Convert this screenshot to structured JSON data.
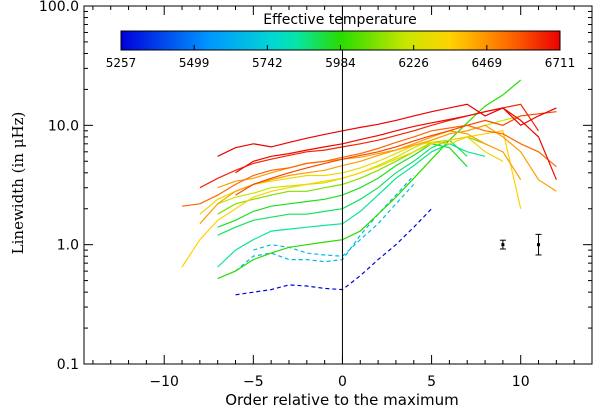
{
  "chart_data": {
    "type": "line",
    "title": "",
    "xlabel": "Order relative to the maximum",
    "ylabel": "Linewidth (in μHz)",
    "y_scale": "log",
    "xlim": [
      -14.5,
      14.0
    ],
    "ylim": [
      0.1,
      100
    ],
    "x_ticks": [
      -10,
      -5,
      0,
      5,
      10
    ],
    "x_tick_labels": [
      "−10",
      "−5",
      "0",
      "5",
      "10"
    ],
    "y_ticks": [
      0.1,
      1,
      10,
      100
    ],
    "y_tick_labels": [
      "0.1",
      "1.0",
      "10.0",
      "100.0"
    ],
    "vertical_line_x": 0,
    "colorbar": {
      "title": "Effective temperature",
      "min": 5257,
      "max": 6711,
      "tick_labels": [
        "5257",
        "5499",
        "5742",
        "5984",
        "6226",
        "6469",
        "6711"
      ]
    },
    "error_bars": [
      {
        "x": 9,
        "y": 1.0,
        "low": 0.92,
        "high": 1.09
      },
      {
        "x": 11,
        "y": 1.0,
        "low": 0.82,
        "high": 1.22
      }
    ],
    "series": [
      {
        "teff": 5257,
        "style": "dashed",
        "x": [
          -6,
          -4,
          -3,
          -2,
          -1,
          0,
          1,
          2,
          3,
          4,
          5
        ],
        "y": [
          0.38,
          0.42,
          0.46,
          0.45,
          0.43,
          0.42,
          0.55,
          0.75,
          1.0,
          1.4,
          2.0
        ]
      },
      {
        "teff": 5650,
        "style": "dashed",
        "x": [
          -6,
          -5,
          -4,
          -3,
          -2,
          -1,
          0,
          1,
          2,
          3,
          4
        ],
        "y": [
          0.6,
          0.8,
          0.85,
          0.75,
          0.75,
          0.72,
          0.75,
          1.2,
          1.8,
          2.6,
          3.8
        ]
      },
      {
        "teff": 5680,
        "style": "dashed",
        "x": [
          -5,
          -4,
          -3,
          -2,
          -1,
          0,
          1,
          2,
          3,
          4
        ],
        "y": [
          0.9,
          1.0,
          0.95,
          0.85,
          0.82,
          0.8,
          1.1,
          1.5,
          2.2,
          3.2
        ]
      },
      {
        "teff": 5984,
        "style": "solid",
        "x": [
          -7,
          -6,
          -5,
          -4,
          -3,
          -2,
          -1,
          0,
          1,
          2,
          3,
          4,
          5,
          6,
          7,
          8,
          9,
          10
        ],
        "y": [
          0.52,
          0.6,
          0.75,
          0.85,
          0.95,
          1.0,
          1.05,
          1.1,
          1.3,
          1.8,
          2.5,
          3.6,
          5.2,
          7.5,
          10.5,
          14.5,
          18,
          24
        ]
      },
      {
        "teff": 5850,
        "style": "solid",
        "x": [
          -7,
          -6,
          -5,
          -4,
          -3,
          -2,
          -1,
          0,
          1,
          2,
          3,
          4,
          5,
          6,
          7,
          8
        ],
        "y": [
          0.65,
          0.9,
          1.1,
          1.3,
          1.35,
          1.4,
          1.45,
          1.5,
          1.9,
          2.6,
          3.6,
          4.6,
          6,
          7,
          6,
          5.5
        ]
      },
      {
        "teff": 5900,
        "style": "solid",
        "x": [
          -7,
          -6,
          -5,
          -4,
          -3,
          -2,
          -1,
          0,
          1,
          2,
          3,
          4,
          5,
          6,
          7
        ],
        "y": [
          1.2,
          1.4,
          1.6,
          1.7,
          1.8,
          1.8,
          1.9,
          2.0,
          2.4,
          3.0,
          4.0,
          5.0,
          6.5,
          7.5,
          5.5
        ]
      },
      {
        "teff": 5950,
        "style": "solid",
        "x": [
          -7,
          -6,
          -5,
          -4,
          -3,
          -2,
          -1,
          0,
          1,
          2,
          3,
          4,
          5,
          6,
          7
        ],
        "y": [
          1.4,
          1.6,
          1.9,
          2.1,
          2.2,
          2.3,
          2.4,
          2.6,
          3.0,
          3.6,
          4.6,
          5.6,
          7,
          6.5,
          4.5
        ]
      },
      {
        "teff": 6100,
        "style": "solid",
        "x": [
          -7,
          -6,
          -5,
          -4,
          -3,
          -2,
          -1,
          0,
          1,
          2,
          3,
          4,
          5,
          6,
          7,
          8
        ],
        "y": [
          1.8,
          2.2,
          2.4,
          2.6,
          2.8,
          2.8,
          3.0,
          3.2,
          3.6,
          4.2,
          5.0,
          6.0,
          7.2,
          7.5,
          8,
          7
        ]
      },
      {
        "teff": 6200,
        "style": "solid",
        "x": [
          -7,
          -6,
          -5,
          -4,
          -3,
          -2,
          -1,
          0,
          1,
          2,
          3,
          4,
          5,
          6,
          7,
          8,
          9,
          10
        ],
        "y": [
          2.2,
          2.5,
          2.7,
          3.0,
          3.1,
          3.2,
          3.3,
          3.6,
          4.0,
          4.6,
          5.4,
          6.5,
          7.5,
          8.5,
          9,
          10,
          11,
          12
        ]
      },
      {
        "teff": 6300,
        "style": "solid",
        "x": [
          -8,
          -7,
          -6,
          -5,
          -4,
          -3,
          -2,
          -1,
          0,
          1,
          2,
          3,
          4,
          5,
          6,
          7,
          8,
          9
        ],
        "y": [
          1.8,
          2.4,
          2.8,
          3.2,
          3.4,
          3.6,
          3.8,
          3.8,
          4.0,
          4.4,
          5.0,
          5.8,
          6.8,
          7.2,
          7,
          8,
          6,
          5
        ]
      },
      {
        "teff": 6350,
        "style": "solid",
        "x": [
          -9,
          -8,
          -7,
          -6,
          -5,
          -4,
          -3,
          -2,
          -1,
          0,
          1,
          2,
          3,
          4,
          5,
          6,
          7,
          8,
          9,
          10
        ],
        "y": [
          0.65,
          1.1,
          1.6,
          2.0,
          2.5,
          2.8,
          3.0,
          3.2,
          3.4,
          3.6,
          4.0,
          4.5,
          5.2,
          6,
          7,
          7.5,
          8,
          8.5,
          9,
          2
        ]
      },
      {
        "teff": 6450,
        "style": "solid",
        "x": [
          -8,
          -7,
          -6,
          -5,
          -4,
          -3,
          -2,
          -1,
          0,
          1,
          2,
          3,
          4,
          5,
          6,
          7,
          8,
          9,
          10
        ],
        "y": [
          1.5,
          2.2,
          2.8,
          3.2,
          3.5,
          3.8,
          4.0,
          4.2,
          4.6,
          5.0,
          5.6,
          6.2,
          7,
          8,
          9,
          8.5,
          7,
          6,
          3.5
        ]
      },
      {
        "teff": 6450,
        "style": "solid",
        "x": [
          -7,
          -6,
          -5,
          -4,
          -3,
          -2,
          -1,
          0,
          1,
          2,
          3,
          4,
          5,
          6,
          7,
          8,
          9,
          10,
          11,
          12
        ],
        "y": [
          3.0,
          3.4,
          3.6,
          4.0,
          4.4,
          4.8,
          5.0,
          5.2,
          5.4,
          5.8,
          6.2,
          6.8,
          7.5,
          8.5,
          9,
          10,
          8,
          6,
          3.5,
          2.8
        ]
      },
      {
        "teff": 6550,
        "style": "solid",
        "x": [
          -9,
          -8,
          -7,
          -6,
          -5,
          -4,
          -3,
          -2,
          -1,
          0,
          1,
          2,
          3,
          4,
          5,
          6,
          7,
          8,
          9,
          10,
          11,
          12
        ],
        "y": [
          2.1,
          2.2,
          2.6,
          3.2,
          3.8,
          4.2,
          4.4,
          4.8,
          5.0,
          5.4,
          5.8,
          6.4,
          7.2,
          8,
          9,
          9.5,
          10,
          9,
          8.5,
          7,
          6,
          4.5
        ]
      },
      {
        "teff": 6600,
        "style": "solid",
        "x": [
          -6,
          -5,
          -4,
          -3,
          -2,
          -1,
          0,
          1,
          2,
          3,
          4,
          5,
          6,
          7,
          8,
          9,
          10,
          11,
          12
        ],
        "y": [
          2.6,
          3.2,
          3.6,
          4.0,
          4.4,
          4.8,
          5.2,
          5.6,
          6.0,
          6.6,
          7.4,
          8.2,
          9,
          10,
          11,
          10,
          12,
          12.5,
          13
        ]
      },
      {
        "teff": 6650,
        "style": "solid",
        "x": [
          -8,
          -7,
          -6,
          -5,
          -4,
          -3,
          -2,
          -1,
          0,
          1,
          2,
          3,
          4,
          5,
          6,
          7,
          8,
          9,
          10,
          11
        ],
        "y": [
          3.0,
          3.6,
          4.2,
          4.8,
          5.2,
          5.6,
          6.0,
          6.2,
          6.6,
          7.0,
          7.5,
          8.2,
          9,
          10,
          11,
          12,
          13,
          14,
          15,
          9
        ]
      },
      {
        "teff": 6700,
        "style": "solid",
        "x": [
          -6,
          -5,
          -4,
          -3,
          -2,
          -1,
          0,
          1,
          2,
          3,
          4,
          5,
          6,
          7,
          8,
          9,
          10,
          11,
          12
        ],
        "y": [
          4.0,
          5.0,
          5.5,
          5.8,
          6.2,
          6.6,
          7.0,
          7.6,
          8.2,
          9.0,
          9.8,
          10.5,
          11.2,
          12,
          13,
          14,
          11,
          8,
          3.5
        ]
      },
      {
        "teff": 6711,
        "style": "solid",
        "x": [
          -7,
          -6,
          -5,
          -4,
          -3,
          -2,
          -1,
          0,
          1,
          2,
          3,
          4,
          5,
          6,
          7,
          8,
          9,
          10,
          11,
          12
        ],
        "y": [
          5.5,
          6.5,
          7.0,
          6.6,
          7.2,
          7.8,
          8.4,
          9.0,
          9.6,
          10.2,
          11,
          12,
          13,
          14,
          15,
          12,
          14,
          10,
          12,
          14
        ]
      }
    ]
  }
}
